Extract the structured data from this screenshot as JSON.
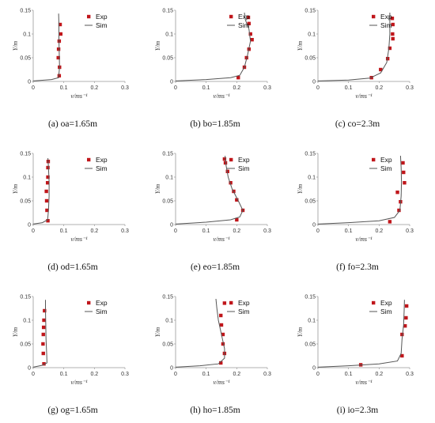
{
  "chart_data": [
    {
      "type": "scatter+line",
      "caption": "(a) oa=1.65m",
      "xlabel": "v/ms⁻¹",
      "ylabel": "Y/m",
      "xlim": [
        0,
        0.3
      ],
      "ylim": [
        0,
        0.15
      ],
      "xticks": [
        "0",
        "0.1",
        "0.2",
        "0.3"
      ],
      "yticks": [
        "0",
        "0.05",
        "0.1",
        "0.15"
      ],
      "legend": "top-right",
      "series": [
        {
          "name": "Exp",
          "kind": "markers",
          "color": "#c0161b",
          "points": [
            [
              0.085,
              0.012
            ],
            [
              0.086,
              0.03
            ],
            [
              0.082,
              0.05
            ],
            [
              0.083,
              0.068
            ],
            [
              0.085,
              0.085
            ],
            [
              0.09,
              0.1
            ],
            [
              0.088,
              0.12
            ]
          ]
        },
        {
          "name": "Sim",
          "kind": "line",
          "color": "#555555",
          "points": [
            [
              0,
              0.001
            ],
            [
              0.06,
              0.004
            ],
            [
              0.083,
              0.008
            ],
            [
              0.086,
              0.03
            ],
            [
              0.085,
              0.06
            ],
            [
              0.084,
              0.09
            ],
            [
              0.084,
              0.12
            ],
            [
              0.083,
              0.143
            ]
          ]
        }
      ]
    },
    {
      "type": "scatter+line",
      "caption": "(b) bo=1.85m",
      "xlabel": "v/ms⁻¹",
      "ylabel": "Y/m",
      "xlim": [
        0,
        0.3
      ],
      "ylim": [
        0,
        0.15
      ],
      "xticks": [
        "0",
        "0.1",
        "0.2",
        "0.3"
      ],
      "yticks": [
        "0",
        "0.05",
        "0.1",
        "0.15"
      ],
      "legend": "top-right",
      "series": [
        {
          "name": "Exp",
          "kind": "markers",
          "color": "#c0161b",
          "points": [
            [
              0.205,
              0.008
            ],
            [
              0.225,
              0.03
            ],
            [
              0.232,
              0.05
            ],
            [
              0.24,
              0.068
            ],
            [
              0.25,
              0.088
            ],
            [
              0.245,
              0.1
            ],
            [
              0.24,
              0.122
            ],
            [
              0.238,
              0.135
            ]
          ]
        },
        {
          "name": "Sim",
          "kind": "line",
          "color": "#555555",
          "points": [
            [
              0,
              0.001
            ],
            [
              0.1,
              0.004
            ],
            [
              0.18,
              0.008
            ],
            [
              0.21,
              0.013
            ],
            [
              0.225,
              0.03
            ],
            [
              0.235,
              0.055
            ],
            [
              0.245,
              0.085
            ],
            [
              0.24,
              0.11
            ],
            [
              0.228,
              0.13
            ],
            [
              0.225,
              0.145
            ]
          ]
        }
      ]
    },
    {
      "type": "scatter+line",
      "caption": "(c) co=2.3m",
      "xlabel": "v/ms⁻¹",
      "ylabel": "Y/m",
      "xlim": [
        0,
        0.3
      ],
      "ylim": [
        0,
        0.15
      ],
      "xticks": [
        "0",
        "0.1",
        "0.2",
        "0.3"
      ],
      "yticks": [
        "0",
        "0.05",
        "0.1",
        "0.15"
      ],
      "legend": "top-right",
      "series": [
        {
          "name": "Exp",
          "kind": "markers",
          "color": "#c0161b",
          "points": [
            [
              0.175,
              0.008
            ],
            [
              0.205,
              0.025
            ],
            [
              0.228,
              0.048
            ],
            [
              0.235,
              0.07
            ],
            [
              0.245,
              0.09
            ],
            [
              0.244,
              0.1
            ],
            [
              0.245,
              0.12
            ],
            [
              0.243,
              0.133
            ]
          ]
        },
        {
          "name": "Sim",
          "kind": "line",
          "color": "#555555",
          "points": [
            [
              0,
              0.001
            ],
            [
              0.1,
              0.003
            ],
            [
              0.17,
              0.007
            ],
            [
              0.205,
              0.018
            ],
            [
              0.225,
              0.04
            ],
            [
              0.232,
              0.07
            ],
            [
              0.235,
              0.1
            ],
            [
              0.235,
              0.125
            ],
            [
              0.235,
              0.145
            ]
          ]
        }
      ]
    },
    {
      "type": "scatter+line",
      "caption": "(d) od=1.65m",
      "xlabel": "v/ms⁻¹",
      "ylabel": "Y/m",
      "xlim": [
        0,
        0.3
      ],
      "ylim": [
        0,
        0.15
      ],
      "xticks": [
        "0",
        "0.1",
        "0.2",
        "0.3"
      ],
      "yticks": [
        "0",
        "0.05",
        "0.1",
        "0.15"
      ],
      "legend": "top-right",
      "series": [
        {
          "name": "Exp",
          "kind": "markers",
          "color": "#c0161b",
          "points": [
            [
              0.048,
              0.008
            ],
            [
              0.045,
              0.03
            ],
            [
              0.044,
              0.05
            ],
            [
              0.043,
              0.07
            ],
            [
              0.047,
              0.088
            ],
            [
              0.048,
              0.1
            ],
            [
              0.048,
              0.12
            ],
            [
              0.049,
              0.133
            ]
          ]
        },
        {
          "name": "Sim",
          "kind": "line",
          "color": "#555555",
          "points": [
            [
              0,
              0.001
            ],
            [
              0.03,
              0.004
            ],
            [
              0.047,
              0.01
            ],
            [
              0.05,
              0.03
            ],
            [
              0.052,
              0.06
            ],
            [
              0.052,
              0.09
            ],
            [
              0.05,
              0.12
            ],
            [
              0.048,
              0.14
            ]
          ]
        }
      ]
    },
    {
      "type": "scatter+line",
      "caption": "(e) eo=1.85m",
      "xlabel": "v/ms⁻¹",
      "ylabel": "Y/m",
      "xlim": [
        0,
        0.3
      ],
      "ylim": [
        0,
        0.15
      ],
      "xticks": [
        "0",
        "0.1",
        "0.2",
        "0.3"
      ],
      "yticks": [
        "0",
        "0.05",
        "0.1",
        "0.15"
      ],
      "legend": "top-right",
      "series": [
        {
          "name": "Exp",
          "kind": "markers",
          "color": "#c0161b",
          "points": [
            [
              0.2,
              0.01
            ],
            [
              0.22,
              0.03
            ],
            [
              0.2,
              0.052
            ],
            [
              0.19,
              0.07
            ],
            [
              0.18,
              0.088
            ],
            [
              0.17,
              0.112
            ],
            [
              0.163,
              0.13
            ],
            [
              0.16,
              0.138
            ]
          ]
        },
        {
          "name": "Sim",
          "kind": "line",
          "color": "#555555",
          "points": [
            [
              0,
              0.001
            ],
            [
              0.1,
              0.005
            ],
            [
              0.18,
              0.01
            ],
            [
              0.21,
              0.016
            ],
            [
              0.22,
              0.03
            ],
            [
              0.205,
              0.05
            ],
            [
              0.185,
              0.075
            ],
            [
              0.172,
              0.1
            ],
            [
              0.165,
              0.125
            ],
            [
              0.162,
              0.145
            ]
          ]
        }
      ]
    },
    {
      "type": "scatter+line",
      "caption": "(f) fo=2.3m",
      "xlabel": "v/ms⁻¹",
      "ylabel": "Y/m",
      "xlim": [
        0,
        0.3
      ],
      "ylim": [
        0,
        0.15
      ],
      "xticks": [
        "0",
        "0.1",
        "0.2",
        "0.3"
      ],
      "yticks": [
        "0",
        "0.05",
        "0.1",
        "0.15"
      ],
      "legend": "top-right",
      "series": [
        {
          "name": "Exp",
          "kind": "markers",
          "color": "#c0161b",
          "points": [
            [
              0.235,
              0.006
            ],
            [
              0.265,
              0.03
            ],
            [
              0.27,
              0.048
            ],
            [
              0.26,
              0.068
            ],
            [
              0.283,
              0.088
            ],
            [
              0.28,
              0.11
            ],
            [
              0.278,
              0.13
            ]
          ]
        },
        {
          "name": "Sim",
          "kind": "line",
          "color": "#555555",
          "points": [
            [
              0,
              0.001
            ],
            [
              0.1,
              0.004
            ],
            [
              0.2,
              0.008
            ],
            [
              0.25,
              0.015
            ],
            [
              0.268,
              0.03
            ],
            [
              0.272,
              0.06
            ],
            [
              0.273,
              0.09
            ],
            [
              0.272,
              0.12
            ],
            [
              0.27,
              0.145
            ]
          ]
        }
      ]
    },
    {
      "type": "scatter+line",
      "caption": "(g) og=1.65m",
      "xlabel": "v/ms⁻¹",
      "ylabel": "Y/m",
      "xlim": [
        0,
        0.3
      ],
      "ylim": [
        0,
        0.15
      ],
      "xticks": [
        "0",
        "0.1",
        "0.2",
        "0.3"
      ],
      "yticks": [
        "0",
        "0.05",
        "0.1",
        "0.15"
      ],
      "legend": "top-right",
      "series": [
        {
          "name": "Exp",
          "kind": "markers",
          "color": "#c0161b",
          "points": [
            [
              0.035,
              0.008
            ],
            [
              0.033,
              0.03
            ],
            [
              0.032,
              0.05
            ],
            [
              0.033,
              0.07
            ],
            [
              0.034,
              0.085
            ],
            [
              0.035,
              0.1
            ],
            [
              0.037,
              0.12
            ]
          ]
        },
        {
          "name": "Sim",
          "kind": "line",
          "color": "#555555",
          "points": [
            [
              0,
              0.001
            ],
            [
              0.03,
              0.005
            ],
            [
              0.045,
              0.01
            ],
            [
              0.044,
              0.03
            ],
            [
              0.042,
              0.06
            ],
            [
              0.041,
              0.09
            ],
            [
              0.04,
              0.12
            ],
            [
              0.04,
              0.143
            ]
          ]
        }
      ]
    },
    {
      "type": "scatter+line",
      "caption": "(h) ho=1.85m",
      "xlabel": "v/ms⁻¹",
      "ylabel": "Y/m",
      "xlim": [
        0,
        0.3
      ],
      "ylim": [
        0,
        0.15
      ],
      "xticks": [
        "0",
        "0.1",
        "0.2",
        "0.3"
      ],
      "yticks": [
        "0",
        "0.05",
        "0.1",
        "0.15"
      ],
      "legend": "top-right",
      "series": [
        {
          "name": "Exp",
          "kind": "markers",
          "color": "#c0161b",
          "points": [
            [
              0.148,
              0.01
            ],
            [
              0.16,
              0.03
            ],
            [
              0.155,
              0.05
            ],
            [
              0.155,
              0.07
            ],
            [
              0.15,
              0.09
            ],
            [
              0.148,
              0.11
            ],
            [
              0.16,
              0.136
            ]
          ]
        },
        {
          "name": "Sim",
          "kind": "line",
          "color": "#555555",
          "points": [
            [
              0,
              0.001
            ],
            [
              0.08,
              0.004
            ],
            [
              0.14,
              0.008
            ],
            [
              0.16,
              0.02
            ],
            [
              0.16,
              0.04
            ],
            [
              0.15,
              0.07
            ],
            [
              0.14,
              0.1
            ],
            [
              0.135,
              0.125
            ],
            [
              0.132,
              0.145
            ]
          ]
        }
      ]
    },
    {
      "type": "scatter+line",
      "caption": "(i) io=2.3m",
      "xlabel": "v/ms⁻¹",
      "ylabel": "Y/m",
      "xlim": [
        0,
        0.3
      ],
      "ylim": [
        0,
        0.15
      ],
      "xticks": [
        "0",
        "0.1",
        "0.2",
        "0.3"
      ],
      "yticks": [
        "0",
        "0.05",
        "0.1",
        "0.15"
      ],
      "legend": "top-right",
      "series": [
        {
          "name": "Exp",
          "kind": "markers",
          "color": "#c0161b",
          "points": [
            [
              0.14,
              0.006
            ],
            [
              0.275,
              0.025
            ],
            [
              0.275,
              0.07
            ],
            [
              0.285,
              0.088
            ],
            [
              0.288,
              0.105
            ],
            [
              0.29,
              0.13
            ]
          ]
        },
        {
          "name": "Sim",
          "kind": "line",
          "color": "#555555",
          "points": [
            [
              0,
              0.001
            ],
            [
              0.1,
              0.004
            ],
            [
              0.2,
              0.008
            ],
            [
              0.26,
              0.014
            ],
            [
              0.272,
              0.03
            ],
            [
              0.275,
              0.06
            ],
            [
              0.28,
              0.09
            ],
            [
              0.282,
              0.12
            ],
            [
              0.283,
              0.143
            ]
          ]
        }
      ]
    }
  ]
}
